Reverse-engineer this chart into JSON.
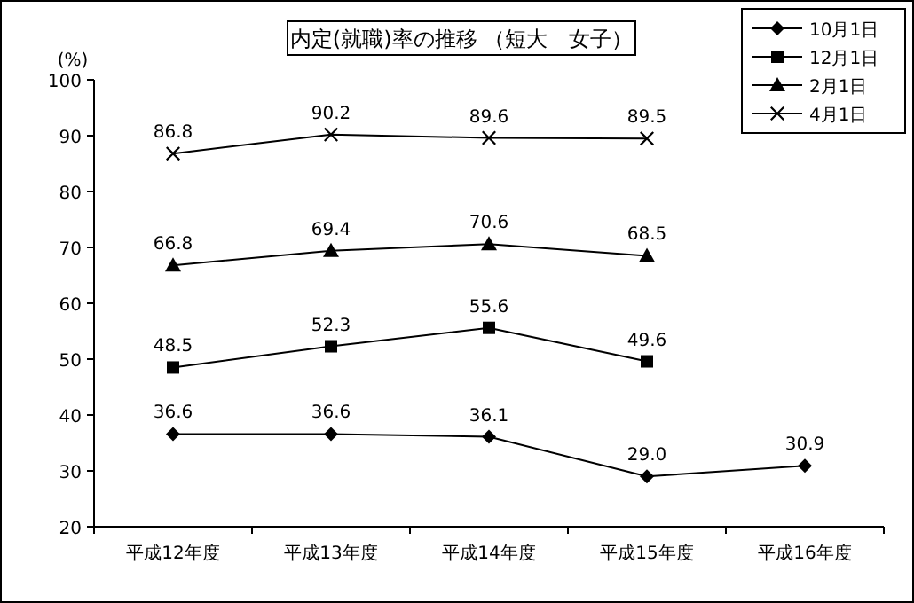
{
  "chart_data": {
    "type": "line",
    "title": "内定(就職)率の推移 （短大　女子）",
    "ylabel": "(%)",
    "categories": [
      "平成12年度",
      "平成13年度",
      "平成14年度",
      "平成15年度",
      "平成16年度"
    ],
    "ylim": [
      20,
      100
    ],
    "yticks": [
      20,
      30,
      40,
      50,
      60,
      70,
      80,
      90,
      100
    ],
    "grid": false,
    "legend": "top right",
    "series": [
      {
        "name": "10月1日",
        "color": "#000000",
        "marker": "diamond",
        "values": [
          36.6,
          36.6,
          36.1,
          29.0,
          30.9
        ],
        "value_labels": [
          "36.6",
          "36.6",
          "36.1",
          "29.0",
          "30.9"
        ]
      },
      {
        "name": "12月1日",
        "color": "#000000",
        "marker": "square",
        "values": [
          48.5,
          52.3,
          55.6,
          49.6,
          null
        ],
        "value_labels": [
          "48.5",
          "52.3",
          "55.6",
          "49.6",
          null
        ]
      },
      {
        "name": "2月1日",
        "color": "#000000",
        "marker": "triangle",
        "values": [
          66.8,
          69.4,
          70.6,
          68.5,
          null
        ],
        "value_labels": [
          "66.8",
          "69.4",
          "70.6",
          "68.5",
          null
        ]
      },
      {
        "name": "4月1日",
        "color": "#000000",
        "marker": "cross",
        "values": [
          86.8,
          90.2,
          89.6,
          89.5,
          null
        ],
        "value_labels": [
          "86.8",
          "90.2",
          "89.6",
          "89.5",
          null
        ]
      }
    ]
  }
}
